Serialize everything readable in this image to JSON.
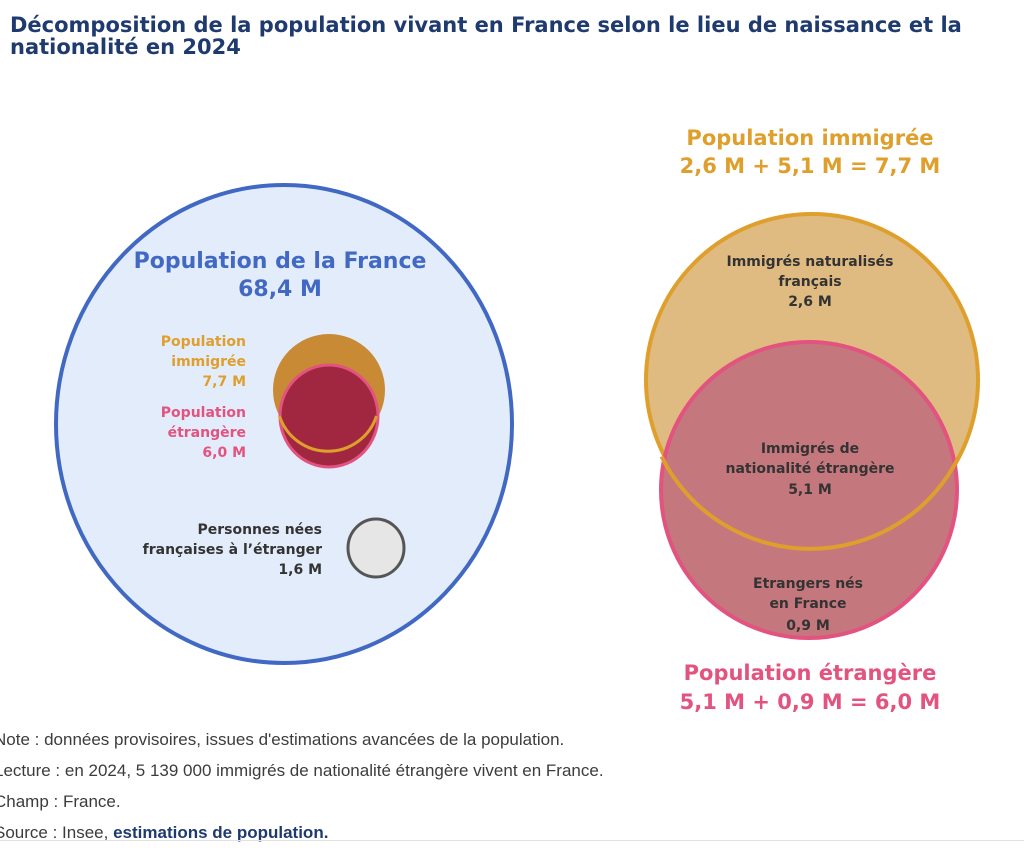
{
  "title": {
    "line1": "Décomposition de la population vivant en France selon le lieu de naissance et la",
    "line2": "nationalité en 2024"
  },
  "colors": {
    "title": "#1f3a6e",
    "france_border": "#4169c4",
    "france_fill": "#e3ecfb",
    "immigres_orange": "#df9f2c",
    "immigres_fill": "#dfbb82",
    "immigres_small_fill": "#c98a35",
    "etrangers_pink": "#e2537f",
    "etrangers_fill": "#c4787e",
    "etrangers_small_fill": "#a12640",
    "nes_etranger_fill": "#e6e6e6",
    "nes_etranger_border": "#555555",
    "dark_label": "#333333",
    "link": "#1f3a6e"
  },
  "left_diagram": {
    "france": {
      "title": "Population de la France",
      "value": "68,4 M"
    },
    "immigres": {
      "line1": "Population",
      "line2": "immigrée",
      "value": "7,7 M"
    },
    "etrangers": {
      "line1": "Population",
      "line2": "étrangère",
      "value": "6,0 M"
    },
    "nes_etranger": {
      "line1": "Personnes nées",
      "line2": "françaises à l’étranger",
      "value": "1,6 M"
    }
  },
  "right_diagram": {
    "immigres_header": {
      "title": "Population immigrée",
      "formula": "2,6 M + 5,1 M = 7,7 M"
    },
    "naturalises": {
      "line1": "Immigrés naturalisés",
      "line2": "français",
      "value": "2,6 M"
    },
    "immigres_etrangers": {
      "line1": "Immigrés de",
      "line2": "nationalité étrangère",
      "value": "5,1 M"
    },
    "etrangers_nes_france": {
      "line1": "Etrangers nés",
      "line2": "en France",
      "value": "0,9 M"
    },
    "etrangers_footer": {
      "title": "Population étrangère",
      "formula": "5,1 M + 0,9 M = 6,0 M"
    }
  },
  "notes": {
    "note": "Note : données provisoires, issues d'estimations avancées de la population.",
    "lecture": "Lecture : en 2024, 5 139 000 immigrés de nationalité étrangère vivent en France.",
    "champ": "Champ : France.",
    "source_prefix": "Source : Insee, ",
    "source_link": "estimations de population."
  }
}
